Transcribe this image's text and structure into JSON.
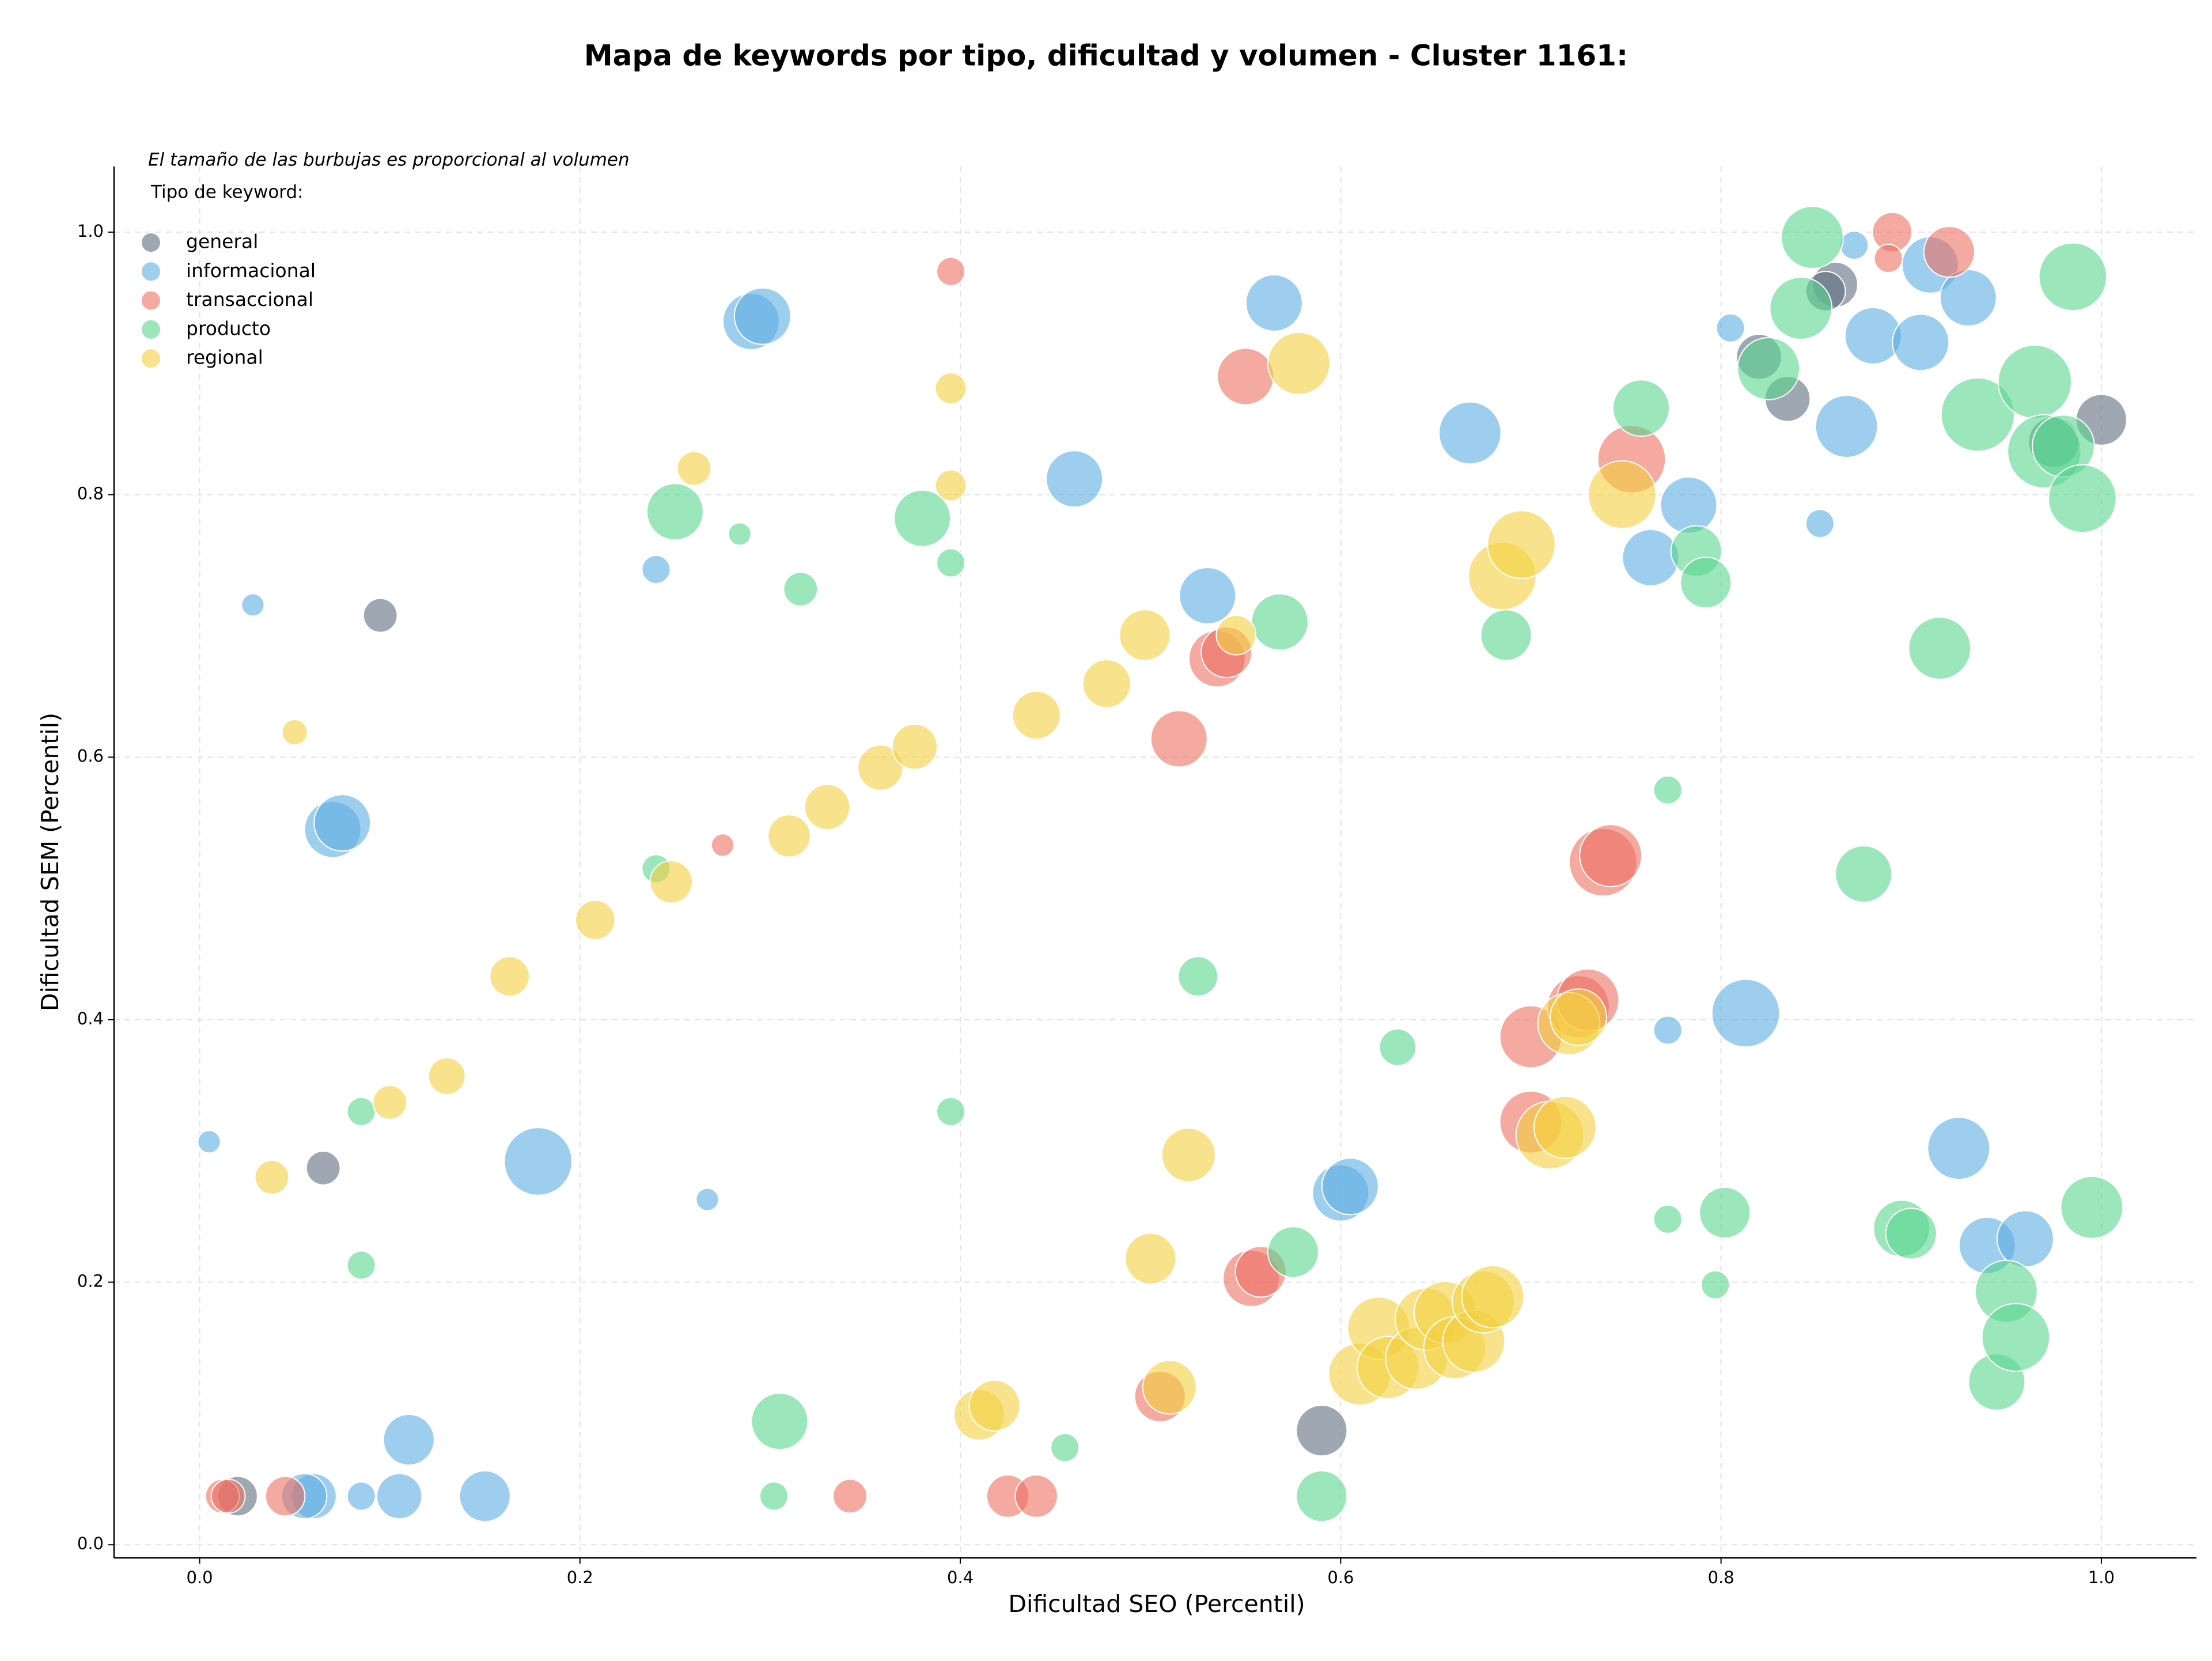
{
  "chart_data": {
    "type": "scatter",
    "title": "Mapa de keywords por tipo, dificultad y volumen - Cluster 1161:",
    "note": "El tamaño de las burbujas es proporcional al volumen",
    "legend_title": "Tipo de keyword:",
    "legend_position": "upper left",
    "xlabel": "Dificultad SEO (Percentil)",
    "ylabel": "Dificultad SEM (Percentil)",
    "xlim": [
      -0.045,
      1.05
    ],
    "ylim": [
      -0.01,
      1.05
    ],
    "xticks": [
      {
        "value": 0,
        "label": "0.0"
      },
      {
        "value": 0.2,
        "label": "0.2"
      },
      {
        "value": 0.4,
        "label": "0.4"
      },
      {
        "value": 0.6,
        "label": "0.6"
      },
      {
        "value": 0.8,
        "label": "0.8"
      },
      {
        "value": 1,
        "label": "1.0"
      }
    ],
    "yticks": [
      {
        "value": 0,
        "label": "0.0"
      },
      {
        "value": 0.2,
        "label": "0.2"
      },
      {
        "value": 0.4,
        "label": "0.4"
      },
      {
        "value": 0.6,
        "label": "0.6"
      },
      {
        "value": 0.8,
        "label": "0.8"
      },
      {
        "value": 1,
        "label": "1.0"
      }
    ],
    "grid": true,
    "series": [
      {
        "name": "general",
        "color": "#5d6d7e",
        "x": [
          0.095,
          0.065,
          0.02,
          0.59,
          0.82,
          0.835,
          0.86,
          1.0,
          0.855,
          0.975
        ],
        "values": [
          0.708,
          0.287,
          0.037,
          0.087,
          0.905,
          0.873,
          0.96,
          0.857,
          0.955,
          0.84
        ],
        "sizes": [
          144,
          144,
          196,
          324,
          256,
          256,
          256,
          324,
          196,
          324
        ]
      },
      {
        "name": "informacional",
        "color": "#5dade2",
        "x": [
          0.005,
          0.028,
          0.07,
          0.075,
          0.178,
          0.24,
          0.267,
          0.29,
          0.296,
          0.06,
          0.055,
          0.085,
          0.105,
          0.11,
          0.15,
          0.46,
          0.53,
          0.565,
          0.6,
          0.605,
          0.668,
          0.763,
          0.783,
          0.772,
          0.813,
          0.805,
          0.852,
          0.866,
          0.87,
          0.88,
          0.905,
          0.91,
          0.93,
          0.925,
          0.94,
          0.96
        ],
        "values": [
          0.307,
          0.716,
          0.545,
          0.55,
          0.292,
          0.743,
          0.263,
          0.932,
          0.936,
          0.037,
          0.037,
          0.037,
          0.037,
          0.08,
          0.037,
          0.812,
          0.723,
          0.946,
          0.268,
          0.273,
          0.847,
          0.752,
          0.792,
          0.392,
          0.405,
          0.927,
          0.778,
          0.852,
          0.99,
          0.921,
          0.916,
          0.975,
          0.95,
          0.302,
          0.228,
          0.233
        ],
        "sizes": [
          64,
          64,
          400,
          400,
          576,
          100,
          64,
          400,
          400,
          256,
          256,
          100,
          256,
          324,
          324,
          400,
          400,
          400,
          400,
          400,
          484,
          400,
          400,
          100,
          576,
          100,
          100,
          484,
          100,
          400,
          400,
          400,
          400,
          484,
          400,
          400
        ]
      },
      {
        "name": "transaccional",
        "color": "#ec7063",
        "x": [
          0.012,
          0.015,
          0.045,
          0.275,
          0.342,
          0.395,
          0.425,
          0.44,
          0.505,
          0.515,
          0.535,
          0.54,
          0.55,
          0.553,
          0.558,
          0.7,
          0.7,
          0.725,
          0.73,
          0.738,
          0.742,
          0.753,
          0.89,
          0.888,
          0.92
        ],
        "values": [
          0.037,
          0.037,
          0.037,
          0.533,
          0.037,
          0.97,
          0.037,
          0.037,
          0.113,
          0.614,
          0.675,
          0.68,
          0.89,
          0.203,
          0.208,
          0.322,
          0.387,
          0.41,
          0.415,
          0.52,
          0.525,
          0.827,
          1.0,
          0.98,
          0.985
        ],
        "sizes": [
          144,
          144,
          196,
          64,
          144,
          100,
          225,
          225,
          324,
          400,
          400,
          324,
          400,
          400,
          324,
          484,
          484,
          484,
          484,
          576,
          484,
          576,
          196,
          100,
          324
        ]
      },
      {
        "name": "producto",
        "color": "#58d68d",
        "x": [
          0.085,
          0.085,
          0.24,
          0.25,
          0.284,
          0.316,
          0.305,
          0.302,
          0.38,
          0.395,
          0.395,
          0.455,
          0.525,
          0.568,
          0.575,
          0.59,
          0.63,
          0.687,
          0.758,
          0.772,
          0.772,
          0.787,
          0.792,
          0.797,
          0.802,
          0.825,
          0.842,
          0.848,
          0.875,
          0.895,
          0.9,
          0.915,
          0.935,
          0.945,
          0.95,
          0.955,
          0.965,
          0.97,
          0.98,
          0.985,
          0.99,
          0.995
        ],
        "values": [
          0.33,
          0.213,
          0.515,
          0.787,
          0.77,
          0.728,
          0.094,
          0.037,
          0.782,
          0.748,
          0.33,
          0.074,
          0.433,
          0.703,
          0.223,
          0.037,
          0.379,
          0.693,
          0.866,
          0.575,
          0.248,
          0.757,
          0.733,
          0.198,
          0.253,
          0.896,
          0.942,
          0.996,
          0.511,
          0.241,
          0.237,
          0.683,
          0.861,
          0.124,
          0.193,
          0.158,
          0.886,
          0.833,
          0.837,
          0.966,
          0.797,
          0.257
        ],
        "sizes": [
          100,
          100,
          100,
          400,
          64,
          144,
          400,
          100,
          400,
          100,
          100,
          100,
          196,
          400,
          324,
          324,
          169,
          324,
          400,
          100,
          100,
          324,
          324,
          100,
          324,
          484,
          484,
          484,
          400,
          400,
          324,
          484,
          676,
          400,
          484,
          576,
          676,
          676,
          484,
          576,
          576,
          484
        ]
      },
      {
        "name": "regional",
        "color": "#f4d03f",
        "x": [
          0.038,
          0.05,
          0.1,
          0.13,
          0.163,
          0.208,
          0.248,
          0.26,
          0.31,
          0.33,
          0.358,
          0.376,
          0.395,
          0.395,
          0.41,
          0.418,
          0.44,
          0.477,
          0.497,
          0.5,
          0.51,
          0.52,
          0.545,
          0.578,
          0.61,
          0.62,
          0.625,
          0.64,
          0.645,
          0.655,
          0.66,
          0.67,
          0.675,
          0.68,
          0.685,
          0.695,
          0.71,
          0.718,
          0.72,
          0.725,
          0.748
        ],
        "values": [
          0.28,
          0.619,
          0.337,
          0.357,
          0.433,
          0.476,
          0.505,
          0.82,
          0.54,
          0.562,
          0.592,
          0.608,
          0.881,
          0.807,
          0.099,
          0.106,
          0.632,
          0.656,
          0.693,
          0.218,
          0.12,
          0.297,
          0.693,
          0.9,
          0.13,
          0.165,
          0.135,
          0.142,
          0.172,
          0.177,
          0.15,
          0.155,
          0.185,
          0.189,
          0.738,
          0.762,
          0.312,
          0.318,
          0.397,
          0.402,
          0.8
        ],
        "sizes": [
          144,
          81,
          144,
          169,
          196,
          196,
          225,
          144,
          225,
          256,
          256,
          256,
          121,
          121,
          324,
          324,
          289,
          289,
          324,
          324,
          361,
          361,
          196,
          484,
          484,
          484,
          484,
          484,
          484,
          484,
          484,
          484,
          484,
          484,
          576,
          576,
          576,
          484,
          484,
          400,
          576
        ]
      }
    ]
  }
}
